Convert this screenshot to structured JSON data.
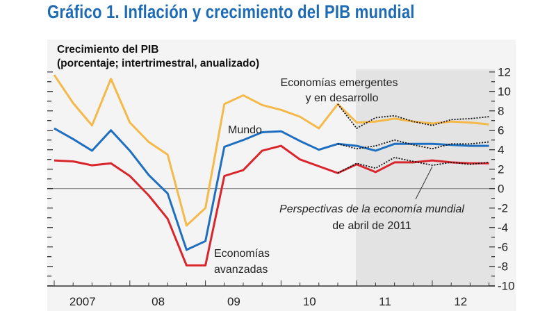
{
  "title": "Gráfico 1. Inflación y crecimiento del PIB mundial",
  "chart_data": {
    "type": "line",
    "subtitle_line1": "Crecimiento del PIB",
    "subtitle_line2": "(porcentaje; intertrimestral, anualizado)",
    "x": [
      "2007Q1",
      "2007Q2",
      "2007Q3",
      "2007Q4",
      "2008Q1",
      "2008Q2",
      "2008Q3",
      "2008Q4",
      "2009Q1",
      "2009Q2",
      "2009Q3",
      "2009Q4",
      "2010Q1",
      "2010Q2",
      "2010Q3",
      "2010Q4",
      "2011Q1",
      "2011Q2",
      "2011Q3",
      "2011Q4",
      "2012Q1",
      "2012Q2",
      "2012Q3",
      "2012Q4"
    ],
    "x_tick_labels": [
      "2007",
      "08",
      "09",
      "10",
      "11",
      "12"
    ],
    "ylim": [
      -10,
      12
    ],
    "y_ticks": [
      12,
      10,
      8,
      6,
      4,
      2,
      0,
      -2,
      -4,
      -6,
      -8,
      -10
    ],
    "y_axis_side": "right",
    "zero_line": true,
    "grid": false,
    "projection_shading_from": "2011Q1",
    "series": [
      {
        "name": "Economías emergentes y en desarrollo",
        "label_line1": "Economías emergentes",
        "label_line2": "y en desarrollo",
        "color": "#f5b94a",
        "values": [
          11.7,
          8.8,
          6.5,
          11.3,
          6.8,
          4.8,
          3.5,
          -3.8,
          -2.0,
          8.7,
          9.6,
          8.6,
          8.1,
          7.4,
          6.2,
          8.7,
          6.8,
          6.9,
          7.2,
          6.9,
          6.7,
          6.9,
          6.8,
          6.6
        ]
      },
      {
        "name": "Mundo",
        "label_line1": "Mundo",
        "color": "#1f6fc0",
        "values": [
          6.2,
          5.1,
          3.9,
          6.0,
          3.9,
          1.4,
          -0.5,
          -6.3,
          -5.4,
          4.3,
          5.0,
          5.8,
          5.9,
          4.9,
          4.0,
          4.6,
          4.4,
          3.9,
          4.6,
          4.6,
          4.6,
          4.5,
          4.4,
          4.4
        ]
      },
      {
        "name": "Economías avanzadas",
        "label_line1": "Economías",
        "label_line2": "avanzadas",
        "color": "#d9262c",
        "values": [
          2.9,
          2.8,
          2.4,
          2.6,
          1.3,
          -0.7,
          -3.1,
          -7.9,
          -7.9,
          1.3,
          1.9,
          3.9,
          4.4,
          3.0,
          2.3,
          1.6,
          2.5,
          1.7,
          2.7,
          2.7,
          2.9,
          2.7,
          2.6,
          2.6
        ]
      }
    ],
    "forecast_series": {
      "name": "Perspectivas de la economía mundial de abril de 2011",
      "label_line1": "Perspectivas de la economía mundial",
      "label_line2": "de abril de 2011",
      "style": "dotted-black",
      "start": "2010Q4",
      "emerging": [
        8.7,
        6.2,
        7.3,
        7.5,
        6.9,
        6.5,
        7.1,
        7.2,
        7.4
      ],
      "world": [
        4.6,
        4.1,
        4.4,
        5.0,
        4.5,
        4.1,
        4.6,
        4.6,
        4.8
      ],
      "advanced": [
        1.6,
        2.6,
        2.1,
        3.2,
        2.8,
        2.4,
        2.7,
        2.5,
        2.7
      ]
    }
  }
}
